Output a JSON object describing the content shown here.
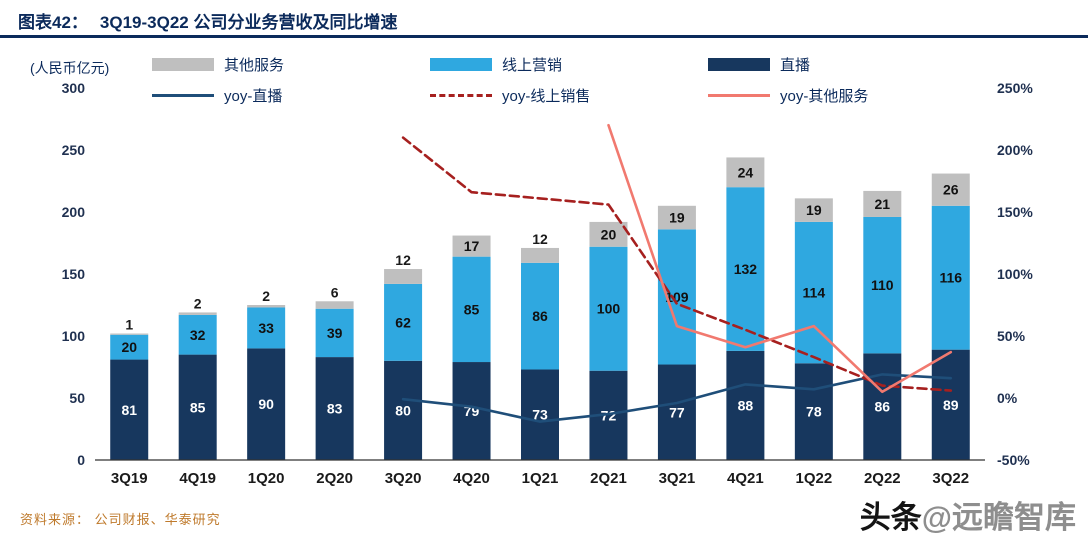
{
  "header": {
    "title_prefix": "图表42：",
    "title": "3Q19-3Q22 公司分业务营收及同比增速"
  },
  "unit_label": "(人民币亿元)",
  "legend": {
    "bars": [
      {
        "label": "其他服务",
        "color": "#BFBFBF"
      },
      {
        "label": "线上营销",
        "color": "#2FA8E0"
      },
      {
        "label": "直播",
        "color": "#17375E"
      }
    ],
    "lines": [
      {
        "label": "yoy-直播",
        "color": "#1F4E79",
        "dash": false
      },
      {
        "label": "yoy-线上销售",
        "color": "#A6201F",
        "dash": true
      },
      {
        "label": "yoy-其他服务",
        "color": "#F1796F",
        "dash": false
      }
    ]
  },
  "source": "资料来源： 公司财报、华泰研究",
  "watermark": {
    "brand": "头条",
    "handle": "@远瞻智库"
  },
  "chart_data": {
    "type": "bar+line (stacked bars, left axis; yoy % lines, right axis)",
    "title": "3Q19-3Q22 公司分业务营收及同比增速",
    "categories": [
      "3Q19",
      "4Q19",
      "1Q20",
      "2Q20",
      "3Q20",
      "4Q20",
      "1Q21",
      "2Q21",
      "3Q21",
      "4Q21",
      "1Q22",
      "2Q22",
      "3Q22"
    ],
    "series": [
      {
        "name": "直播",
        "type": "bar",
        "color": "#17375E",
        "label_color": "#FFFFFF",
        "values": [
          81,
          85,
          90,
          83,
          80,
          79,
          73,
          72,
          77,
          88,
          78,
          86,
          89
        ]
      },
      {
        "name": "线上营销",
        "type": "bar",
        "color": "#2FA8E0",
        "label_color": "#111111",
        "values": [
          20,
          32,
          33,
          39,
          62,
          85,
          86,
          100,
          109,
          132,
          114,
          110,
          116
        ]
      },
      {
        "name": "其他服务",
        "type": "bar",
        "color": "#BFBFBF",
        "label_color": "#111111",
        "values": [
          1,
          2,
          2,
          6,
          12,
          17,
          12,
          20,
          19,
          24,
          19,
          21,
          26
        ]
      }
    ],
    "lines": [
      {
        "name": "yoy-直播",
        "color": "#1F4E79",
        "dash": false,
        "values": [
          null,
          null,
          null,
          null,
          -1,
          -7,
          -19,
          -13,
          -4,
          11,
          7,
          19,
          16
        ]
      },
      {
        "name": "yoy-线上销售",
        "color": "#A6201F",
        "dash": true,
        "values": [
          null,
          null,
          null,
          null,
          210,
          166,
          161,
          156,
          76,
          55,
          33,
          10,
          6
        ]
      },
      {
        "name": "yoy-其他服务",
        "color": "#F1796F",
        "dash": false,
        "values": [
          null,
          null,
          null,
          null,
          null,
          null,
          null,
          220,
          58,
          41,
          58,
          5,
          37
        ]
      }
    ],
    "left_axis": {
      "min": 0,
      "max": 300,
      "step": 50,
      "label": "(人民币亿元)"
    },
    "right_axis": {
      "min": -50,
      "max": 250,
      "step": 50,
      "format": "percent"
    },
    "grid": false,
    "legend_position": "top",
    "bar_mode": "stacked"
  }
}
